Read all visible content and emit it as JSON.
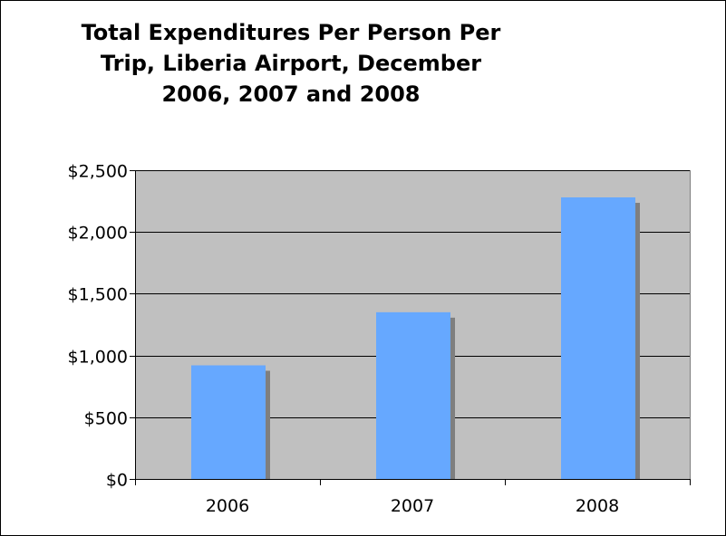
{
  "chart_data": {
    "type": "bar",
    "title": "Total Expenditures Per Person Per\nTrip, Liberia Airport, December\n2006, 2007 and 2008",
    "categories": [
      "2006",
      "2007",
      "2008"
    ],
    "values": [
      920,
      1350,
      2280
    ],
    "ylim": [
      0,
      2500
    ],
    "yticks": [
      0,
      500,
      1000,
      1500,
      2000,
      2500
    ],
    "ytick_labels": [
      "$0",
      "$500",
      "$1,000",
      "$1,500",
      "$2,000",
      "$2,500"
    ],
    "grid": true,
    "legend": "none",
    "colors": {
      "bar": "#66a8ff",
      "bar_shadow": "#7f7f7f",
      "plot_background": "#c0c0c0",
      "grid": "#000000"
    }
  }
}
